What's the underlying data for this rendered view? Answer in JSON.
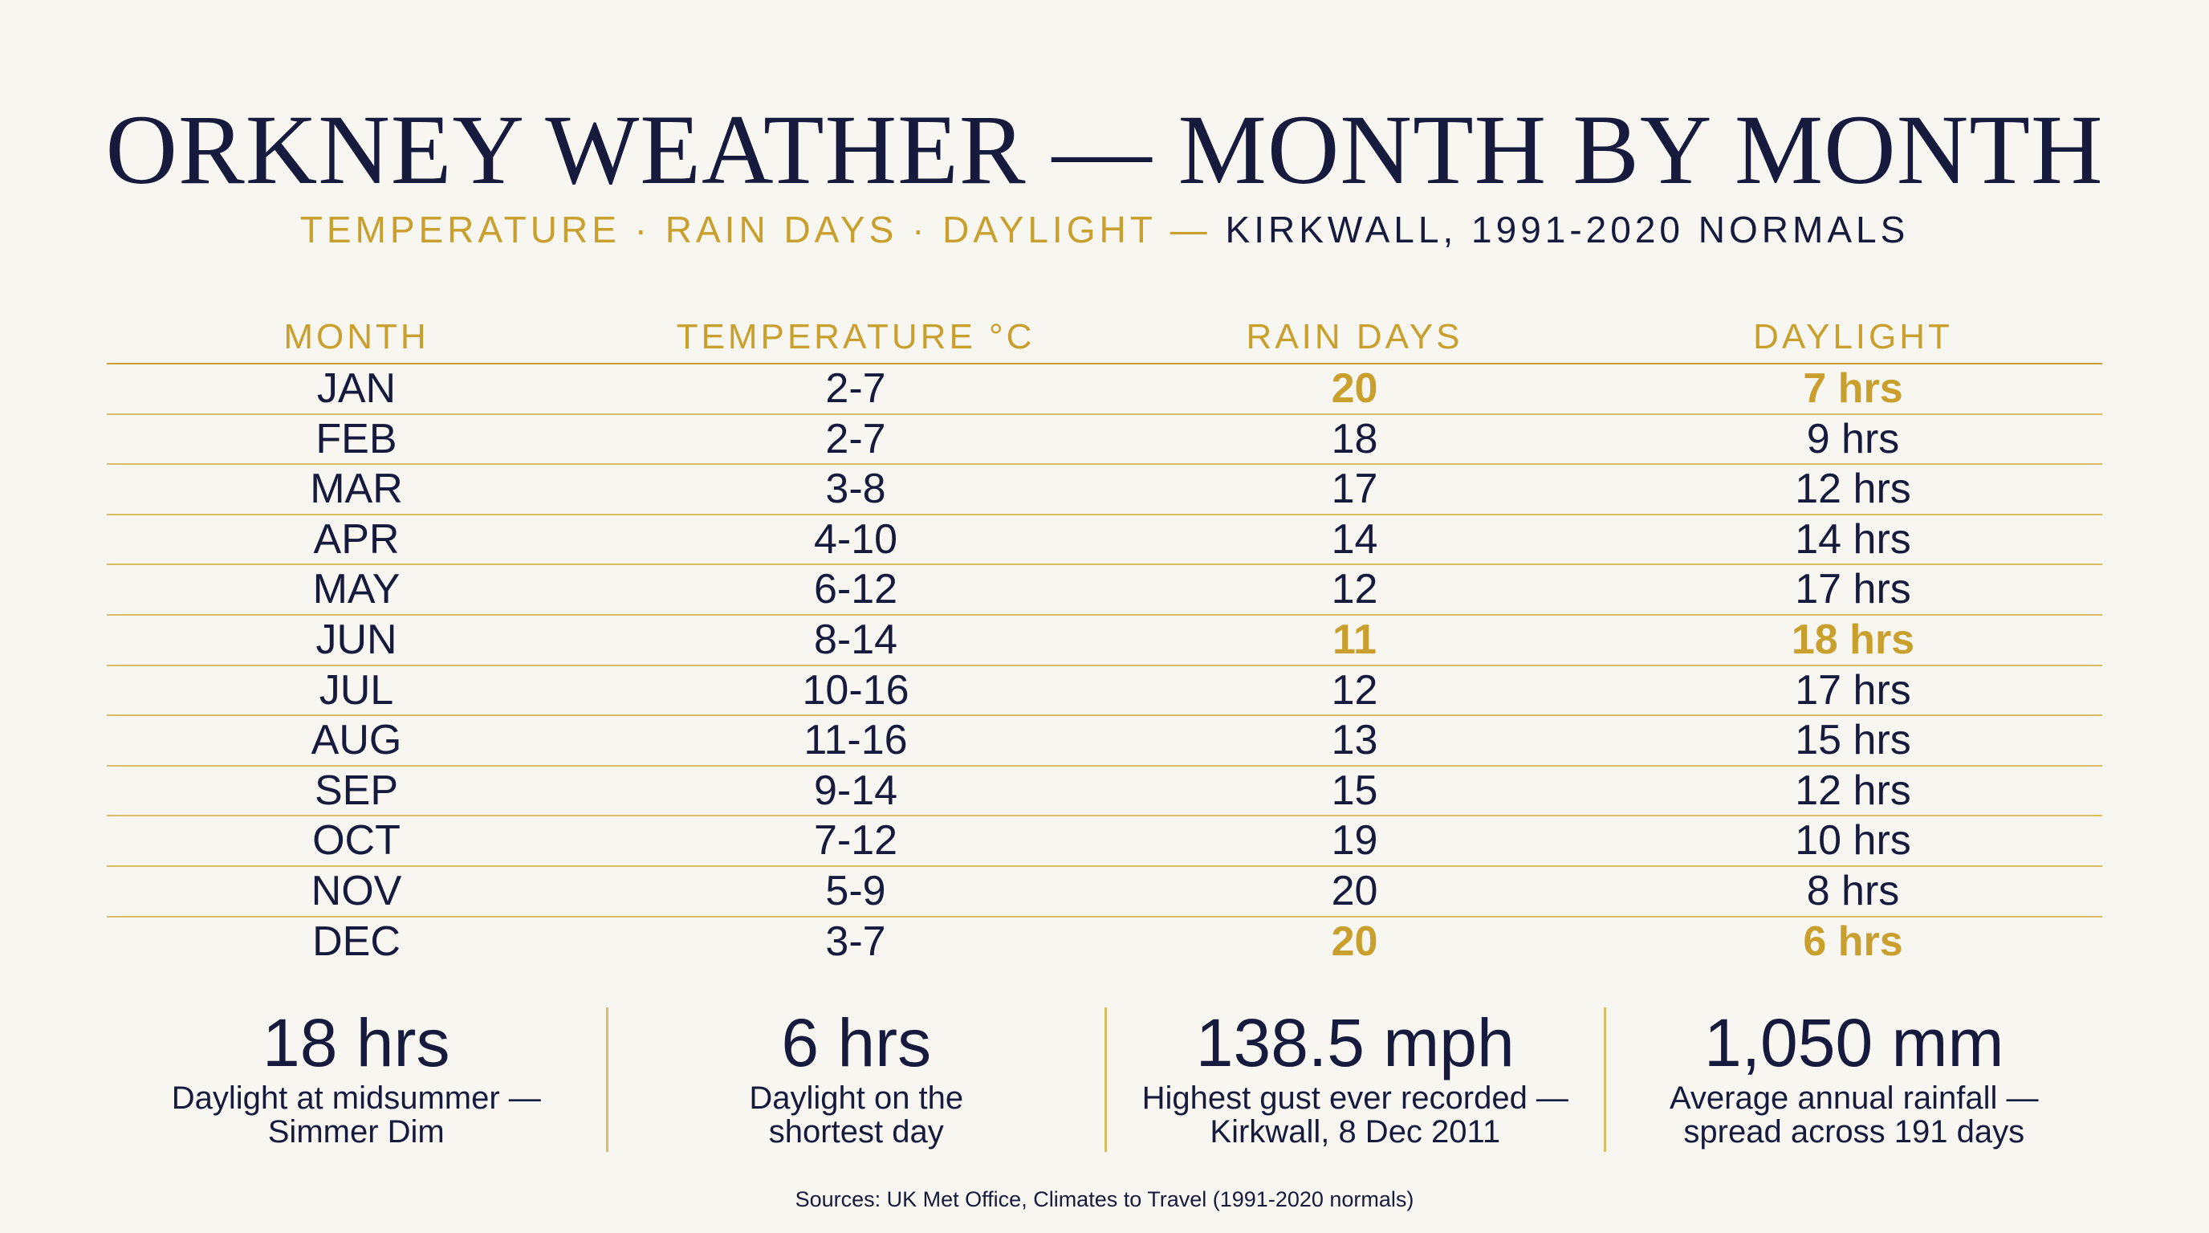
{
  "header": {
    "title": "ORKNEY WEATHER — MONTH BY MONTH",
    "subtitle_gold": "TEMPERATURE · RAIN DAYS · DAYLIGHT —",
    "subtitle_navy": "KIRKWALL, 1991-2020 NORMALS"
  },
  "table": {
    "columns": [
      "MONTH",
      "TEMPERATURE °C",
      "RAIN DAYS",
      "DAYLIGHT"
    ],
    "rows": [
      {
        "month": "JAN",
        "temp": "2-7",
        "rain": "20",
        "daylight": "7 hrs",
        "rain_hl": true,
        "day_hl": true
      },
      {
        "month": "FEB",
        "temp": "2-7",
        "rain": "18",
        "daylight": "9 hrs",
        "rain_hl": false,
        "day_hl": false
      },
      {
        "month": "MAR",
        "temp": "3-8",
        "rain": "17",
        "daylight": "12 hrs",
        "rain_hl": false,
        "day_hl": false
      },
      {
        "month": "APR",
        "temp": "4-10",
        "rain": "14",
        "daylight": "14 hrs",
        "rain_hl": false,
        "day_hl": false
      },
      {
        "month": "MAY",
        "temp": "6-12",
        "rain": "12",
        "daylight": "17 hrs",
        "rain_hl": false,
        "day_hl": false
      },
      {
        "month": "JUN",
        "temp": "8-14",
        "rain": "11",
        "daylight": "18 hrs",
        "rain_hl": true,
        "day_hl": true
      },
      {
        "month": "JUL",
        "temp": "10-16",
        "rain": "12",
        "daylight": "17 hrs",
        "rain_hl": false,
        "day_hl": false
      },
      {
        "month": "AUG",
        "temp": "11-16",
        "rain": "13",
        "daylight": "15 hrs",
        "rain_hl": false,
        "day_hl": false
      },
      {
        "month": "SEP",
        "temp": "9-14",
        "rain": "15",
        "daylight": "12 hrs",
        "rain_hl": false,
        "day_hl": false
      },
      {
        "month": "OCT",
        "temp": "7-12",
        "rain": "19",
        "daylight": "10 hrs",
        "rain_hl": false,
        "day_hl": false
      },
      {
        "month": "NOV",
        "temp": "5-9",
        "rain": "20",
        "daylight": "8 hrs",
        "rain_hl": false,
        "day_hl": false
      },
      {
        "month": "DEC",
        "temp": "3-7",
        "rain": "20",
        "daylight": "6 hrs",
        "rain_hl": true,
        "day_hl": true
      }
    ]
  },
  "stats": [
    {
      "value": "18 hrs",
      "line1": "Daylight at midsummer —",
      "line2": "Simmer Dim"
    },
    {
      "value": "6 hrs",
      "line1": "Daylight on the",
      "line2": "shortest day"
    },
    {
      "value": "138.5 mph",
      "line1": "Highest gust ever recorded —",
      "line2": "Kirkwall, 8 Dec 2011"
    },
    {
      "value": "1,050 mm",
      "line1": "Average annual rainfall —",
      "line2": "spread across 191 days"
    }
  ],
  "footer": {
    "source": "Sources: UK Met Office, Climates to Travel (1991-2020 normals)"
  },
  "colors": {
    "navy": "#161a3c",
    "gold": "#c9a02e",
    "background": "#f7f6f1"
  }
}
